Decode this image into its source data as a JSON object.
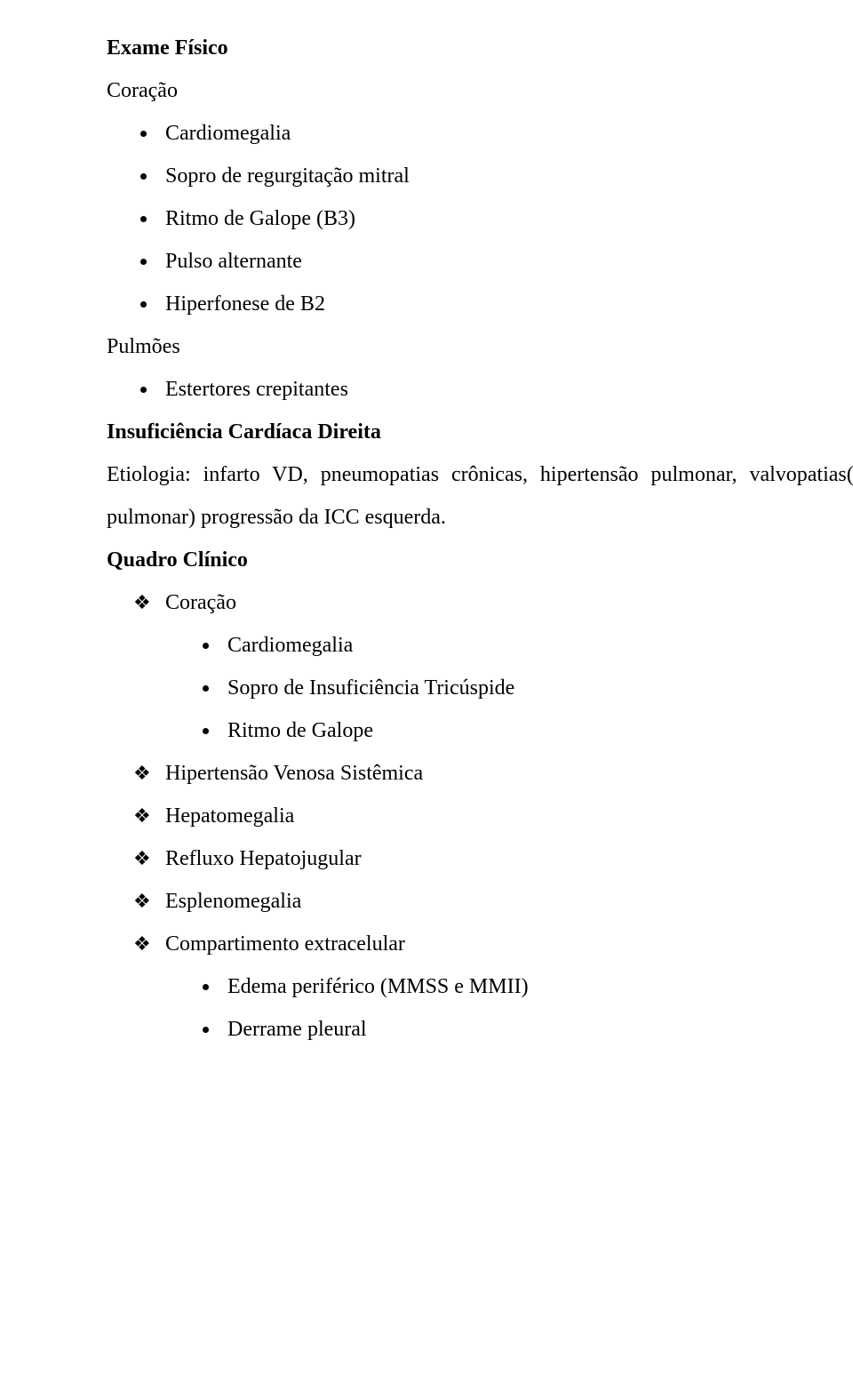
{
  "sec1": {
    "title": "Exame Físico",
    "h1": "Coração",
    "items1": [
      "Cardiomegalia",
      "Sopro de regurgitação mitral",
      "Ritmo de Galope (B3)",
      "Pulso alternante",
      "Hiperfonese de B2"
    ],
    "h2": "Pulmões",
    "items2": [
      "Estertores crepitantes"
    ]
  },
  "sec2": {
    "title": "Insuficiência Cardíaca Direita",
    "body": "Etiologia: infarto VD, pneumopatias crônicas, hipertensão pulmonar, valvopatias(tricúspide e pulmonar) progressão da ICC esquerda."
  },
  "sec3": {
    "title": "Quadro Clínico",
    "d1": {
      "label": "Coração",
      "items": [
        "Cardiomegalia",
        "Sopro de Insuficiência Tricúspide",
        "Ritmo de Galope"
      ]
    },
    "d2": "Hipertensão Venosa Sistêmica",
    "d3": "Hepatomegalia",
    "d4": "Refluxo Hepatojugular",
    "d5": "Esplenomegalia",
    "d6": {
      "label": "Compartimento extracelular",
      "items": [
        "Edema periférico (MMSS e MMII)",
        "Derrame pleural"
      ]
    }
  }
}
